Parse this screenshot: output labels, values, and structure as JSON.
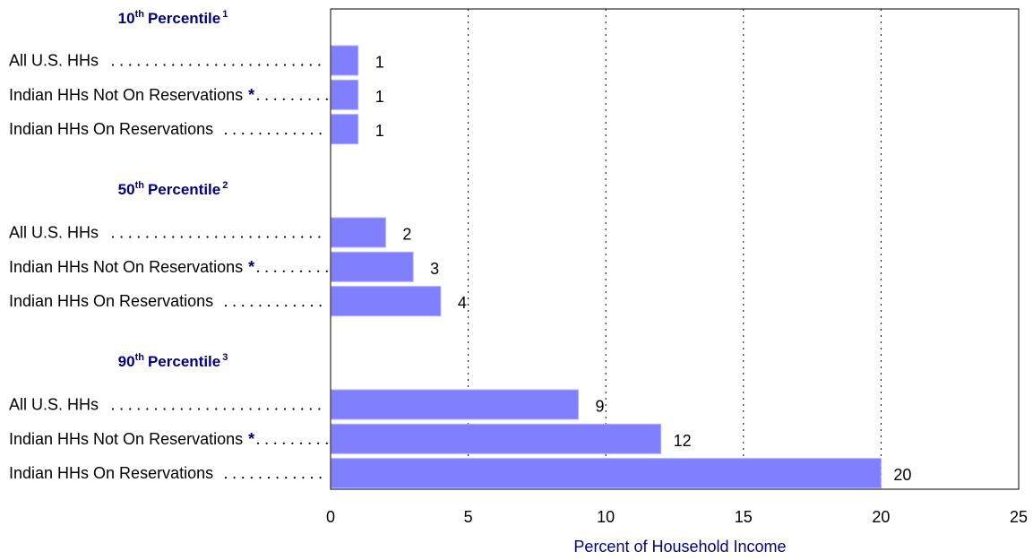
{
  "chart_data": {
    "type": "bar",
    "orientation": "horizontal",
    "xlabel": "Percent of Household Income",
    "xlim": [
      0,
      25
    ],
    "xticks": [
      0,
      5,
      10,
      15,
      20,
      25
    ],
    "grid": "vertical dotted",
    "groups": [
      {
        "title": "Percentile",
        "ordinal": "10",
        "ordinal_suffix": "th",
        "footnote": "1",
        "items": [
          {
            "label": "All U.S. HHs",
            "marker": "",
            "value": 1
          },
          {
            "label": "Indian HHs Not On Reservations",
            "marker": "*",
            "value": 1
          },
          {
            "label": "Indian HHs On Reservations",
            "marker": "",
            "value": 1
          }
        ]
      },
      {
        "title": "Percentile",
        "ordinal": "50",
        "ordinal_suffix": "th",
        "footnote": "2",
        "items": [
          {
            "label": "All U.S. HHs",
            "marker": "",
            "value": 2
          },
          {
            "label": "Indian HHs Not On Reservations",
            "marker": "*",
            "value": 3
          },
          {
            "label": "Indian HHs On Reservations",
            "marker": "",
            "value": 4
          }
        ]
      },
      {
        "title": "Percentile",
        "ordinal": "90",
        "ordinal_suffix": "th",
        "footnote": "3",
        "items": [
          {
            "label": "All U.S. HHs",
            "marker": "",
            "value": 9
          },
          {
            "label": "Indian HHs Not On Reservations",
            "marker": "*",
            "value": 12
          },
          {
            "label": "Indian HHs On Reservations",
            "marker": "",
            "value": 20
          }
        ]
      }
    ]
  },
  "colors": {
    "bar": "#8080ff",
    "bar_edge": "#b0b0ff",
    "title": "#000080",
    "star": "#000080",
    "axis": "#000000",
    "grid": "#000000"
  }
}
